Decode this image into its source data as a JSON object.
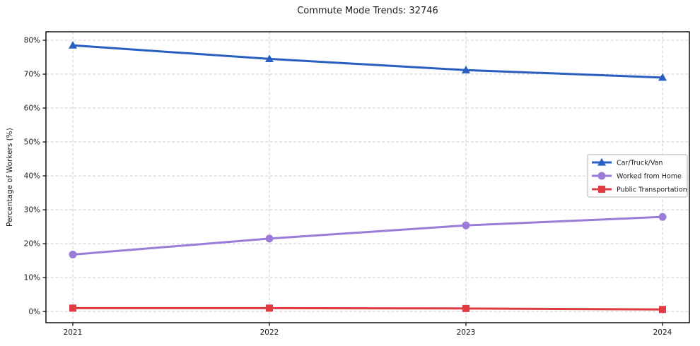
{
  "chart_data": {
    "type": "line",
    "title": "Commute Mode Trends: 32746",
    "xlabel": "",
    "ylabel": "Percentage of Workers (%)",
    "categories": [
      "2021",
      "2022",
      "2023",
      "2024"
    ],
    "series": [
      {
        "name": "Car/Truck/Van",
        "color": "#2a5fc2",
        "marker": "triangle",
        "values": [
          78.5,
          74.5,
          71.2,
          69.0
        ]
      },
      {
        "name": "Worked from Home",
        "color": "#9a7bd8",
        "marker": "circle",
        "values": [
          16.8,
          21.5,
          25.4,
          27.9
        ]
      },
      {
        "name": "Public Transportation",
        "color": "#e03a43",
        "marker": "square",
        "values": [
          1.0,
          1.0,
          0.9,
          0.6
        ]
      }
    ],
    "y_ticks": [
      0,
      10,
      20,
      30,
      40,
      50,
      60,
      70,
      80
    ],
    "y_tick_labels": [
      "0%",
      "10%",
      "20%",
      "30%",
      "40%",
      "50%",
      "60%",
      "70%",
      "80%"
    ],
    "ylim": [
      -3.3,
      82.5
    ],
    "grid": true,
    "grid_style": "dashed",
    "grid_color": "#cccccc",
    "axis_color": "#000000",
    "text_color": "#1a1a1a",
    "legend_position": "center right",
    "legend_border_color": "#b0b0b0",
    "legend_background": "#ffffff"
  }
}
